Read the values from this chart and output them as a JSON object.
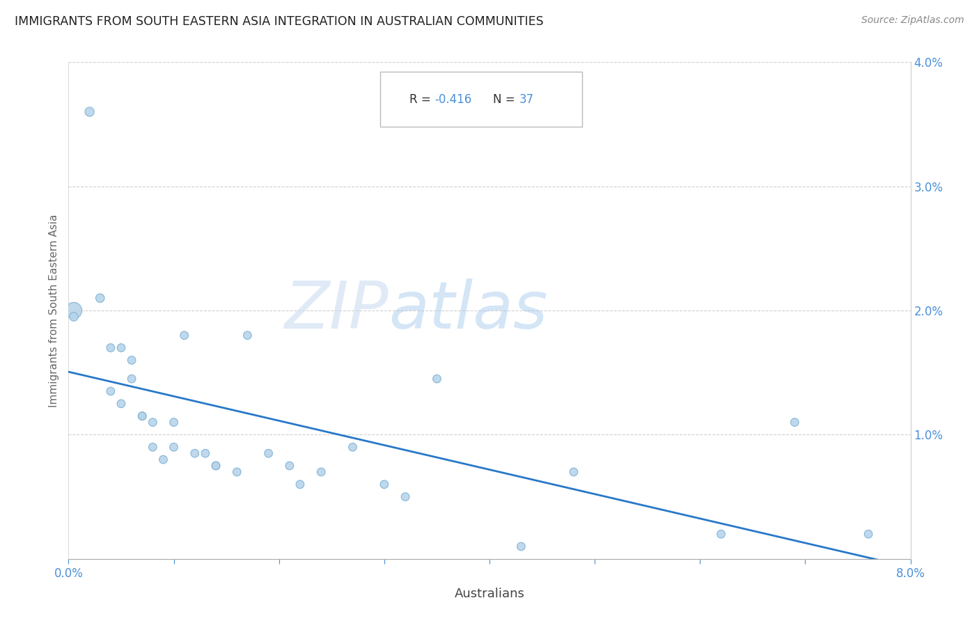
{
  "title": "IMMIGRANTS FROM SOUTH EASTERN ASIA INTEGRATION IN AUSTRALIAN COMMUNITIES",
  "source": "Source: ZipAtlas.com",
  "xlabel": "Australians",
  "ylabel": "Immigrants from South Eastern Asia",
  "xlim": [
    0.0,
    0.08
  ],
  "ylim": [
    0.0,
    0.04
  ],
  "xticks": [
    0.0,
    0.01,
    0.02,
    0.03,
    0.04,
    0.05,
    0.06,
    0.07,
    0.08
  ],
  "yticks": [
    0.0,
    0.01,
    0.02,
    0.03,
    0.04
  ],
  "R": -0.416,
  "N": 37,
  "scatter_color": "#b8d4ea",
  "scatter_edge_color": "#7ab0d4",
  "line_color": "#2878c8",
  "watermark_color": "#d8e8f4",
  "points_x": [
    0.0005,
    0.0005,
    0.002,
    0.003,
    0.004,
    0.004,
    0.005,
    0.005,
    0.006,
    0.006,
    0.007,
    0.007,
    0.008,
    0.008,
    0.009,
    0.01,
    0.01,
    0.011,
    0.012,
    0.013,
    0.014,
    0.014,
    0.016,
    0.017,
    0.019,
    0.021,
    0.022,
    0.024,
    0.027,
    0.03,
    0.032,
    0.035,
    0.043,
    0.048,
    0.062,
    0.069,
    0.076
  ],
  "points_y": [
    0.02,
    0.0195,
    0.036,
    0.021,
    0.017,
    0.0135,
    0.017,
    0.0125,
    0.016,
    0.0145,
    0.0115,
    0.0115,
    0.011,
    0.009,
    0.008,
    0.011,
    0.009,
    0.018,
    0.0085,
    0.0085,
    0.0075,
    0.0075,
    0.007,
    0.018,
    0.0085,
    0.0075,
    0.006,
    0.007,
    0.009,
    0.006,
    0.005,
    0.0145,
    0.001,
    0.007,
    0.002,
    0.011,
    0.002
  ],
  "point_sizes": [
    280,
    80,
    90,
    80,
    70,
    70,
    70,
    70,
    70,
    70,
    70,
    70,
    70,
    70,
    70,
    70,
    70,
    70,
    70,
    70,
    70,
    70,
    70,
    70,
    70,
    70,
    70,
    70,
    70,
    70,
    70,
    70,
    70,
    70,
    70,
    70,
    70
  ]
}
